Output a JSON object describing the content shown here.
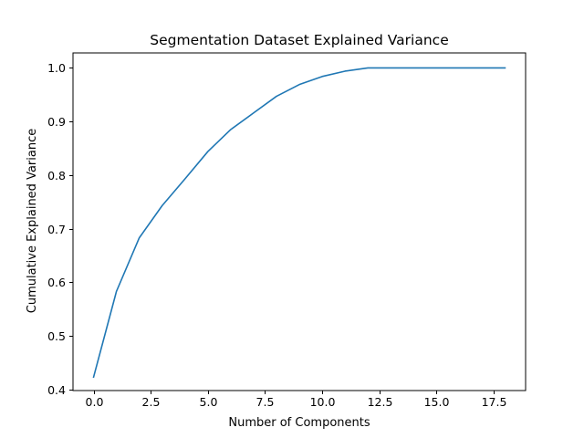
{
  "chart_data": {
    "type": "line",
    "title": "Segmentation Dataset Explained Variance",
    "xlabel": "Number of Components",
    "ylabel": "Cumulative Explained Variance",
    "xlim": [
      -0.9,
      18.9
    ],
    "ylim": [
      0.398,
      1.028
    ],
    "xticks": [
      0.0,
      2.5,
      5.0,
      7.5,
      10.0,
      12.5,
      15.0,
      17.5
    ],
    "xtick_labels": [
      "0.0",
      "2.5",
      "5.0",
      "7.5",
      "10.0",
      "12.5",
      "15.0",
      "17.5"
    ],
    "yticks": [
      0.4,
      0.5,
      0.6,
      0.7,
      0.8,
      0.9,
      1.0
    ],
    "ytick_labels": [
      "0.4",
      "0.5",
      "0.6",
      "0.7",
      "0.8",
      "0.9",
      "1.0"
    ],
    "grid": false,
    "line_color": "#1f77b4",
    "series": [
      {
        "x": [
          0,
          1,
          2,
          3,
          4,
          5,
          6,
          7,
          8,
          9,
          10,
          11,
          12,
          13,
          14,
          15,
          16,
          17,
          18
        ],
        "values": [
          0.423,
          0.583,
          0.683,
          0.743,
          0.793,
          0.844,
          0.885,
          0.916,
          0.947,
          0.969,
          0.984,
          0.994,
          1.0,
          1.0,
          1.0,
          1.0,
          1.0,
          1.0,
          1.0
        ]
      }
    ]
  }
}
